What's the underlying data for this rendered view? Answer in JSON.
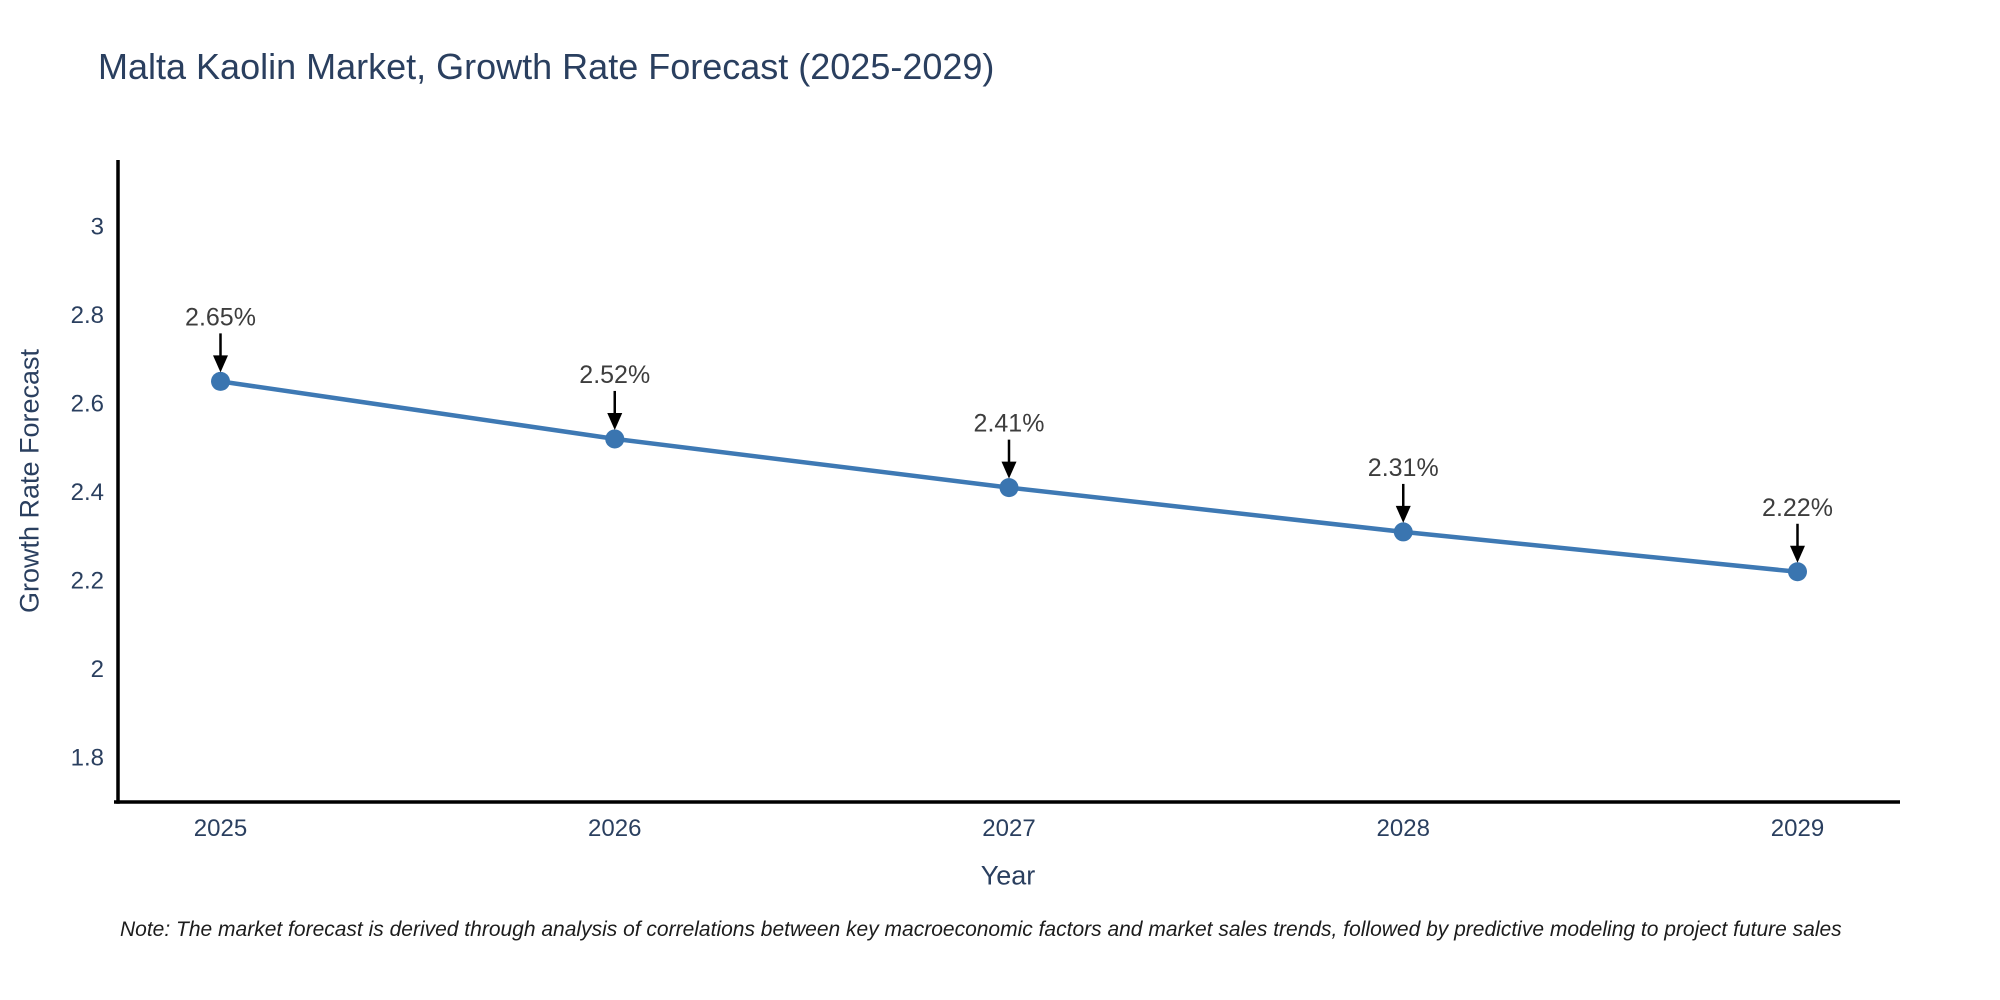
{
  "chart": {
    "title": "Malta Kaolin Market, Growth Rate Forecast (2025-2029)",
    "note": "Note: The market forecast is derived through analysis of correlations between key macroeconomic factors and market sales trends, followed by predictive modeling to project future sales"
  },
  "chart_data": {
    "type": "line",
    "title": "Malta Kaolin Market, Growth Rate Forecast (2025-2029)",
    "xlabel": "Year",
    "ylabel": "Growth Rate Forecast",
    "x": [
      2025,
      2026,
      2027,
      2028,
      2029
    ],
    "y": [
      2.65,
      2.52,
      2.41,
      2.31,
      2.22
    ],
    "point_labels": [
      "2.65%",
      "2.52%",
      "2.41%",
      "2.31%",
      "2.22%"
    ],
    "xticks": [
      2025,
      2026,
      2027,
      2028,
      2029
    ],
    "yticks": [
      1.8,
      2.0,
      2.2,
      2.4,
      2.6,
      2.8,
      3.0
    ],
    "xlim": [
      2024.74,
      2029.26
    ],
    "ylim": [
      1.7,
      3.15
    ],
    "grid": false,
    "legend": null,
    "annotation_style": "value label above point with downward black arrow",
    "colors": {
      "line": "#3e79b4",
      "marker": "#3a75b0",
      "axis": "#000000",
      "arrow": "#000000",
      "text": "#2a3f5f",
      "annotation_text": "#3d3d3d",
      "background": "#ffffff"
    }
  }
}
